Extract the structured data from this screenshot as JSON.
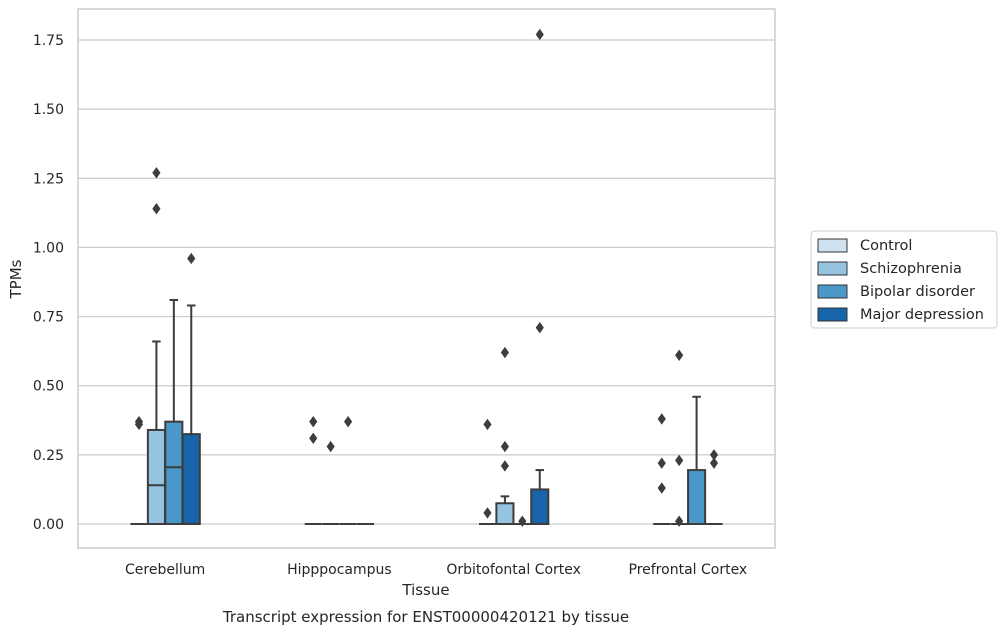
{
  "chart_data": {
    "type": "box",
    "title": "",
    "caption": "Transcript expression for ENST00000420121 by tissue",
    "xlabel": "Tissue",
    "ylabel": "TPMs",
    "ylim": [
      -0.085,
      1.86
    ],
    "yticks": [
      0.0,
      0.25,
      0.5,
      0.75,
      1.0,
      1.25,
      1.5,
      1.75
    ],
    "ytick_labels": [
      "0.00",
      "0.25",
      "0.50",
      "0.75",
      "1.00",
      "1.25",
      "1.50",
      "1.75"
    ],
    "grid": "horizontal",
    "legend_position": "right",
    "categories": [
      "Cerebellum",
      "Hipppocampus",
      "Orbitofontal Cortex",
      "Prefrontal Cortex"
    ],
    "series": [
      {
        "name": "Control",
        "color": "#d0e1f2",
        "boxes": [
          {
            "q1": 0,
            "median": 0,
            "q3": 0,
            "whisker_low": 0,
            "whisker_high": 0,
            "outliers": [
              0.37,
              0.36
            ]
          },
          {
            "q1": 0,
            "median": 0,
            "q3": 0,
            "whisker_low": 0,
            "whisker_high": 0,
            "outliers": [
              0.31,
              0.37
            ]
          },
          {
            "q1": 0,
            "median": 0,
            "q3": 0,
            "whisker_low": 0,
            "whisker_high": 0,
            "outliers": [
              0.04,
              0.36
            ]
          },
          {
            "q1": 0,
            "median": 0,
            "q3": 0,
            "whisker_low": 0,
            "whisker_high": 0,
            "outliers": [
              0.13,
              0.22,
              0.38
            ]
          }
        ]
      },
      {
        "name": "Schizophrenia",
        "color": "#94c4df",
        "boxes": [
          {
            "q1": 0,
            "median": 0.14,
            "q3": 0.34,
            "whisker_low": 0,
            "whisker_high": 0.66,
            "outliers": [
              1.27,
              1.14
            ]
          },
          {
            "q1": 0,
            "median": 0,
            "q3": 0,
            "whisker_low": 0,
            "whisker_high": 0,
            "outliers": [
              0.28
            ]
          },
          {
            "q1": 0,
            "median": 0,
            "q3": 0.075,
            "whisker_low": 0,
            "whisker_high": 0.1,
            "outliers": [
              0.21,
              0.28,
              0.62
            ]
          },
          {
            "q1": 0,
            "median": 0,
            "q3": 0,
            "whisker_low": 0,
            "whisker_high": 0,
            "outliers": [
              0.01,
              0.23,
              0.61
            ]
          }
        ]
      },
      {
        "name": "Bipolar disorder",
        "color": "#4a98c9",
        "boxes": [
          {
            "q1": 0,
            "median": 0.205,
            "q3": 0.37,
            "whisker_low": 0,
            "whisker_high": 0.81,
            "outliers": []
          },
          {
            "q1": 0,
            "median": 0,
            "q3": 0,
            "whisker_low": 0,
            "whisker_high": 0,
            "outliers": [
              0.37
            ]
          },
          {
            "q1": 0,
            "median": 0,
            "q3": 0,
            "whisker_low": 0,
            "whisker_high": 0,
            "outliers": [
              0.01
            ]
          },
          {
            "q1": 0,
            "median": 0,
            "q3": 0.195,
            "whisker_low": 0,
            "whisker_high": 0.46,
            "outliers": []
          }
        ]
      },
      {
        "name": "Major depression",
        "color": "#1764ab",
        "boxes": [
          {
            "q1": 0,
            "median": 0,
            "q3": 0.325,
            "whisker_low": 0,
            "whisker_high": 0.79,
            "outliers": [
              0.96
            ]
          },
          {
            "q1": 0,
            "median": 0,
            "q3": 0,
            "whisker_low": 0,
            "whisker_high": 0,
            "outliers": []
          },
          {
            "q1": 0,
            "median": 0,
            "q3": 0.125,
            "whisker_low": 0,
            "whisker_high": 0.195,
            "outliers": [
              0.71,
              1.77
            ]
          },
          {
            "q1": 0,
            "median": 0,
            "q3": 0,
            "whisker_low": 0,
            "whisker_high": 0,
            "outliers": [
              0.22,
              0.25
            ]
          }
        ]
      }
    ]
  }
}
